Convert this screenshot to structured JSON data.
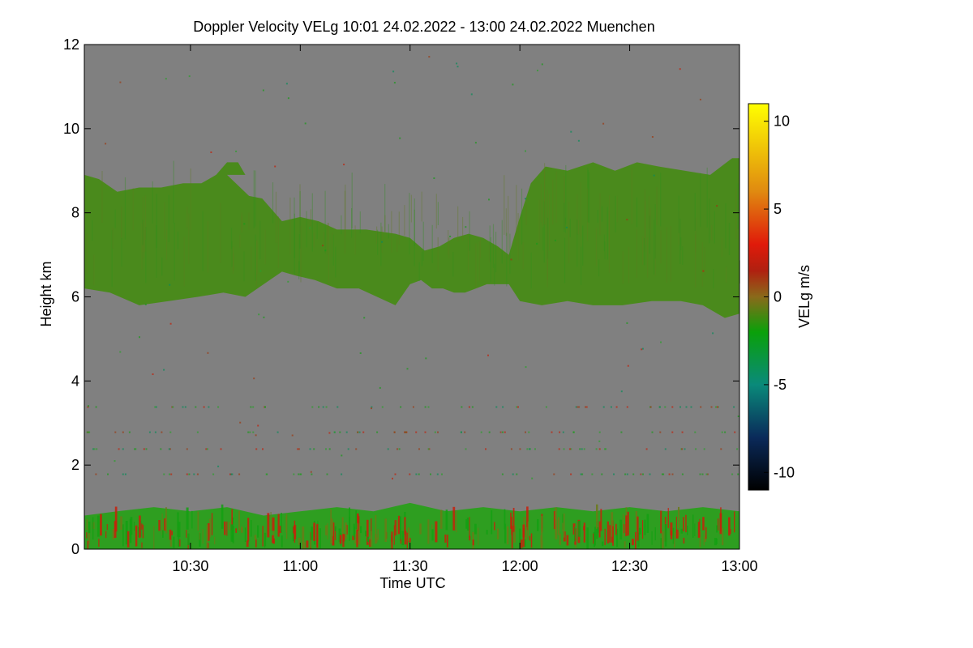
{
  "chart_data": {
    "type": "heatmap",
    "title": "Doppler Velocity VELg   10:01 24.02.2022 - 13:00 24.02.2022 Muenchen",
    "xlabel": "Time UTC",
    "ylabel": "Height km",
    "colorbar_label": "VELg m/s",
    "x_range_minutes": [
      601,
      780
    ],
    "x_ticks": [
      {
        "minute": 630,
        "label": "10:30"
      },
      {
        "minute": 660,
        "label": "11:00"
      },
      {
        "minute": 690,
        "label": "11:30"
      },
      {
        "minute": 720,
        "label": "12:00"
      },
      {
        "minute": 750,
        "label": "12:30"
      },
      {
        "minute": 780,
        "label": "13:00"
      }
    ],
    "ylim": [
      0,
      12
    ],
    "y_ticks": [
      0,
      2,
      4,
      6,
      8,
      10,
      12
    ],
    "colorbar_range": [
      -11,
      11
    ],
    "colorbar_ticks": [
      -10,
      -5,
      0,
      5,
      10
    ],
    "background_color": "#808080",
    "colormap": [
      {
        "v": -11,
        "c": "#000000"
      },
      {
        "v": -8,
        "c": "#0a2a5a"
      },
      {
        "v": -5,
        "c": "#0a8a7a"
      },
      {
        "v": -2,
        "c": "#0aa00a"
      },
      {
        "v": 0,
        "c": "#8a6a1a"
      },
      {
        "v": 1.5,
        "c": "#b02010"
      },
      {
        "v": 3,
        "c": "#e01a0a"
      },
      {
        "v": 6,
        "c": "#e08a10"
      },
      {
        "v": 11,
        "c": "#ffff00"
      }
    ],
    "layers": [
      {
        "name": "cirrus-cloud",
        "mean_velocity": -1.0,
        "color": "#4a8a1c",
        "outline": [
          [
            601,
            8.9
          ],
          [
            605,
            8.8
          ],
          [
            610,
            8.5
          ],
          [
            616,
            8.6
          ],
          [
            622,
            8.6
          ],
          [
            628,
            8.7
          ],
          [
            633,
            8.7
          ],
          [
            637,
            8.9
          ],
          [
            640,
            9.2
          ],
          [
            643,
            9.2
          ],
          [
            647,
            8.6
          ],
          [
            652,
            8.1
          ],
          [
            655,
            7.8
          ],
          [
            660,
            7.9
          ],
          [
            665,
            7.8
          ],
          [
            670,
            7.6
          ],
          [
            678,
            7.6
          ],
          [
            686,
            7.5
          ],
          [
            690,
            7.4
          ],
          [
            694,
            7.1
          ],
          [
            698,
            7.2
          ],
          [
            702,
            7.4
          ],
          [
            706,
            7.5
          ],
          [
            710,
            7.4
          ],
          [
            714,
            7.2
          ],
          [
            717,
            7.0
          ],
          [
            720,
            7.9
          ],
          [
            723,
            8.7
          ],
          [
            727,
            9.1
          ],
          [
            733,
            9.0
          ],
          [
            740,
            9.2
          ],
          [
            746,
            9.0
          ],
          [
            752,
            9.2
          ],
          [
            758,
            9.1
          ],
          [
            765,
            9.0
          ],
          [
            772,
            8.9
          ],
          [
            778,
            9.3
          ],
          [
            780,
            9.3
          ],
          [
            780,
            5.6
          ],
          [
            776,
            5.5
          ],
          [
            770,
            5.8
          ],
          [
            764,
            5.9
          ],
          [
            756,
            5.9
          ],
          [
            748,
            5.8
          ],
          [
            740,
            5.8
          ],
          [
            733,
            5.9
          ],
          [
            726,
            5.8
          ],
          [
            720,
            5.9
          ],
          [
            717,
            6.3
          ],
          [
            714,
            6.3
          ],
          [
            711,
            6.3
          ],
          [
            708,
            6.2
          ],
          [
            705,
            6.1
          ],
          [
            702,
            6.1
          ],
          [
            699,
            6.2
          ],
          [
            696,
            6.2
          ],
          [
            693,
            6.4
          ],
          [
            690,
            6.3
          ],
          [
            686,
            5.8
          ],
          [
            681,
            6.0
          ],
          [
            676,
            6.2
          ],
          [
            670,
            6.2
          ],
          [
            664,
            6.4
          ],
          [
            659,
            6.5
          ],
          [
            655,
            6.6
          ],
          [
            650,
            6.3
          ],
          [
            645,
            6.0
          ],
          [
            639,
            6.1
          ],
          [
            632,
            6.0
          ],
          [
            624,
            5.9
          ],
          [
            616,
            5.8
          ],
          [
            608,
            6.1
          ],
          [
            601,
            6.2
          ]
        ]
      },
      {
        "name": "boundary-layer",
        "mean_velocity": -1.5,
        "color": "#2e9e20",
        "outline": [
          [
            601,
            0.8
          ],
          [
            610,
            0.9
          ],
          [
            620,
            1.0
          ],
          [
            630,
            0.9
          ],
          [
            640,
            1.0
          ],
          [
            650,
            0.8
          ],
          [
            660,
            0.9
          ],
          [
            670,
            1.0
          ],
          [
            680,
            0.9
          ],
          [
            690,
            1.1
          ],
          [
            700,
            0.9
          ],
          [
            710,
            1.0
          ],
          [
            720,
            0.9
          ],
          [
            730,
            1.0
          ],
          [
            740,
            0.9
          ],
          [
            750,
            1.0
          ],
          [
            760,
            0.9
          ],
          [
            770,
            1.0
          ],
          [
            780,
            0.9
          ],
          [
            780,
            0.0
          ],
          [
            601,
            0.0
          ]
        ]
      }
    ],
    "clear_gaps": [
      {
        "name": "clear-air-gap",
        "outline": [
          [
            640,
            8.9
          ],
          [
            650,
            8.9
          ],
          [
            665,
            8.9
          ],
          [
            680,
            8.9
          ],
          [
            690,
            8.8
          ],
          [
            698,
            8.6
          ],
          [
            706,
            8.4
          ],
          [
            711,
            8.2
          ],
          [
            714,
            7.9
          ],
          [
            716,
            7.4
          ],
          [
            713,
            7.3
          ],
          [
            710,
            7.6
          ],
          [
            705,
            7.8
          ],
          [
            700,
            7.7
          ],
          [
            696,
            7.8
          ],
          [
            690,
            7.9
          ],
          [
            683,
            8.0
          ],
          [
            676,
            8.1
          ],
          [
            668,
            8.2
          ],
          [
            660,
            8.2
          ],
          [
            652,
            8.3
          ],
          [
            646,
            8.4
          ]
        ]
      }
    ],
    "speckle_rows_km": [
      3.4,
      2.8,
      2.4,
      1.8
    ]
  }
}
